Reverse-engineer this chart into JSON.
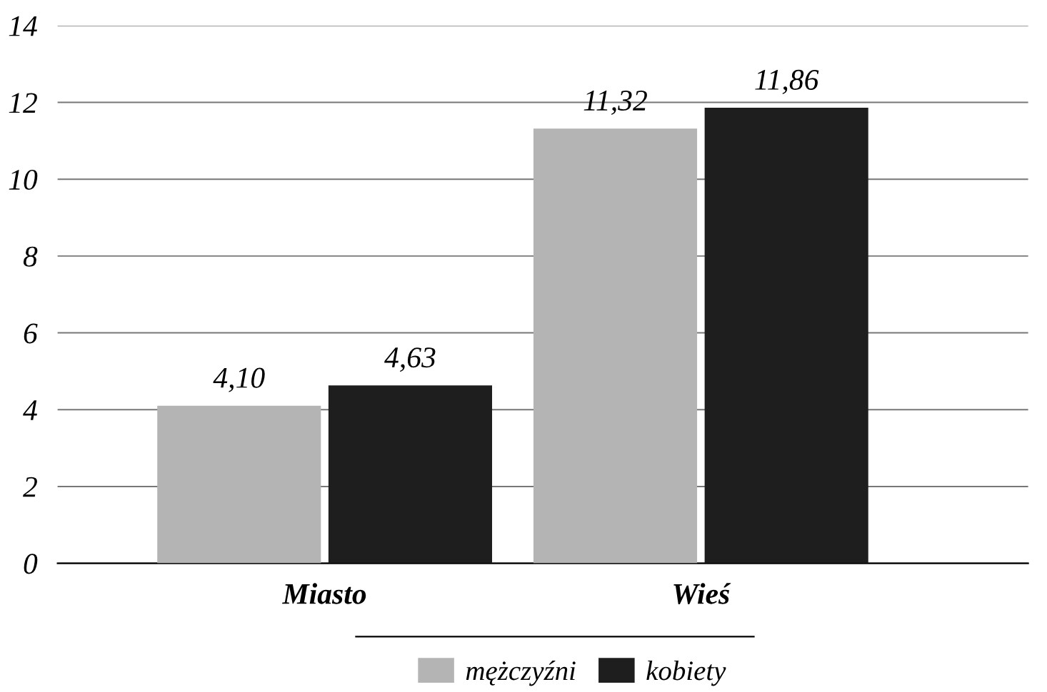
{
  "chart_data": {
    "type": "bar",
    "categories": [
      "Miasto",
      "Wieś"
    ],
    "series": [
      {
        "name": "mężczyźni",
        "color": "#b4b4b4",
        "values": [
          4.1,
          11.32
        ],
        "value_labels": [
          "4,10",
          "11,32"
        ]
      },
      {
        "name": "kobiety",
        "color": "#1e1e1e",
        "values": [
          4.63,
          11.86
        ],
        "value_labels": [
          "4,63",
          "11,86"
        ]
      }
    ],
    "ylim": [
      0,
      14
    ],
    "yticks": [
      0,
      2,
      4,
      6,
      8,
      10,
      12,
      14
    ],
    "grid": "y",
    "legend": "bottom"
  }
}
